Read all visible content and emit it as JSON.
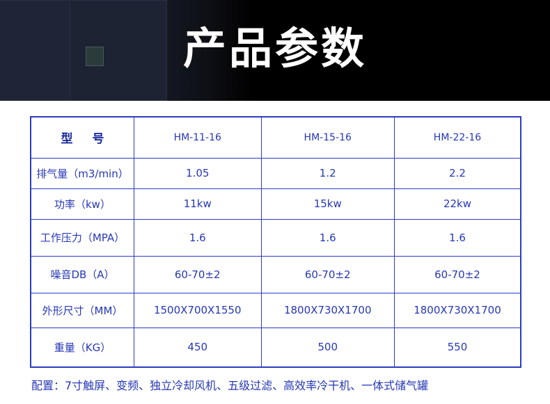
{
  "banner": {
    "title": "产品参数"
  },
  "table": {
    "header": {
      "label": "型 号",
      "models": [
        "HM-11-16",
        "HM-15-16",
        "HM-22-16"
      ]
    },
    "rows": [
      {
        "label": "排气量（m3/min）",
        "values": [
          "1.05",
          "1.2",
          "2.2"
        ]
      },
      {
        "label": "功率（kw）",
        "values": [
          "11kw",
          "15kw",
          "22kw"
        ]
      },
      {
        "label": "工作压力（MPA）",
        "values": [
          "1.6",
          "1.6",
          "1.6"
        ]
      },
      {
        "label": "噪音DB（A）",
        "values": [
          "60-70±2",
          "60-70±2",
          "60-70±2"
        ]
      },
      {
        "label": "外形尺寸（MM）",
        "values": [
          "1500X700X1550",
          "1800X730X1700",
          "1800X730X1700"
        ]
      },
      {
        "label": "重量（KG）",
        "values": [
          "450",
          "500",
          "550"
        ]
      }
    ]
  },
  "note": "配置：7寸触屏、变频、独立冷却风机、五级过滤、高效率冷干机、一体式储气罐",
  "colors": {
    "border": "#2b3bc4",
    "text": "#2637b5",
    "banner": "#000000"
  }
}
